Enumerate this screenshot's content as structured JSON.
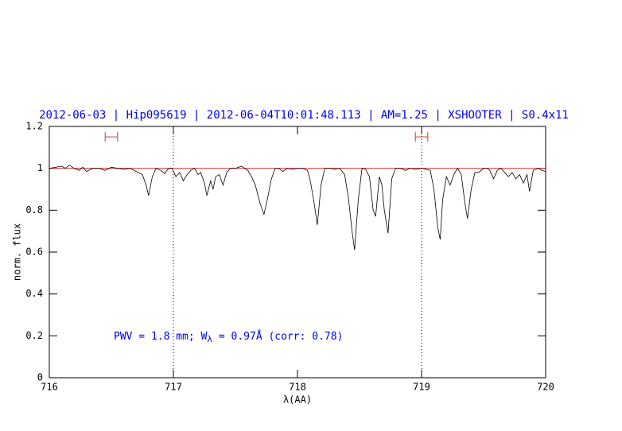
{
  "chart_data": {
    "type": "line",
    "title": "2012-06-03 | Hip095619 | 2012-06-04T10:01:48.113 | AM=1.25 | XSHOOTER | S0.4x11",
    "xlabel": "λ(AA)",
    "ylabel": "norm. flux",
    "annotation": [
      "PWV = 1.8 mm; W",
      "λ",
      " = 0.97Å (corr: 0.78)"
    ],
    "xlim": [
      716,
      720
    ],
    "xticks": [
      716,
      717,
      718,
      719,
      720
    ],
    "ylim": [
      0,
      1.2
    ],
    "yticks": [
      0,
      0.2,
      0.4,
      0.6,
      0.8,
      1,
      1.2
    ],
    "color": "#000000",
    "reference_line": {
      "y": 1,
      "color": "#e03030"
    },
    "vlines": [
      717,
      719
    ],
    "intervals": [
      {
        "x": [
          716.45,
          716.55
        ],
        "y": 1.15
      },
      {
        "x": [
          718.95,
          719.05
        ],
        "y": 1.15
      }
    ],
    "interval_color": "#e03030",
    "title_color": "#0000ee",
    "x": [
      716.0,
      716.05,
      716.1,
      716.13,
      716.16,
      716.2,
      716.24,
      716.27,
      716.3,
      716.35,
      716.4,
      716.45,
      716.5,
      716.55,
      716.6,
      716.65,
      716.7,
      716.75,
      716.78,
      716.8,
      716.83,
      716.86,
      716.9,
      716.93,
      716.96,
      716.99,
      717.02,
      717.05,
      717.08,
      717.11,
      717.14,
      717.17,
      717.2,
      717.22,
      717.25,
      717.27,
      717.3,
      717.32,
      717.34,
      717.37,
      717.4,
      717.43,
      717.46,
      717.5,
      717.55,
      717.6,
      717.63,
      717.66,
      717.7,
      717.73,
      717.76,
      717.79,
      717.82,
      717.85,
      717.88,
      717.92,
      717.96,
      718.0,
      718.04,
      718.08,
      718.1,
      718.13,
      718.16,
      718.19,
      718.22,
      718.26,
      718.3,
      718.34,
      718.38,
      718.41,
      718.44,
      718.46,
      718.49,
      718.52,
      718.55,
      718.58,
      718.61,
      718.63,
      718.66,
      718.68,
      718.7,
      718.73,
      718.76,
      718.79,
      718.83,
      718.87,
      718.91,
      718.95,
      719.0,
      719.04,
      719.07,
      719.1,
      719.13,
      719.15,
      719.17,
      719.2,
      719.23,
      719.26,
      719.29,
      719.32,
      719.35,
      719.37,
      719.4,
      719.43,
      719.46,
      719.5,
      719.53,
      719.55,
      719.58,
      719.61,
      719.64,
      719.67,
      719.7,
      719.73,
      719.76,
      719.79,
      719.82,
      719.85,
      719.87,
      719.9,
      719.94,
      719.97,
      720.0
    ],
    "values": [
      1.0,
      1.005,
      1.01,
      1.0,
      1.015,
      1.0,
      0.99,
      1.005,
      0.985,
      1.0,
      1.0,
      0.99,
      1.005,
      1.0,
      0.995,
      1.0,
      0.985,
      0.97,
      0.92,
      0.87,
      0.96,
      1.0,
      0.99,
      0.975,
      1.0,
      1.0,
      0.96,
      0.98,
      0.94,
      0.97,
      0.99,
      1.0,
      0.97,
      0.98,
      0.93,
      0.87,
      0.94,
      0.9,
      0.96,
      0.97,
      0.92,
      0.98,
      1.0,
      1.0,
      1.01,
      0.99,
      0.96,
      0.92,
      0.83,
      0.78,
      0.86,
      0.95,
      1.0,
      1.0,
      0.985,
      1.0,
      0.995,
      1.0,
      1.0,
      0.99,
      0.95,
      0.85,
      0.73,
      0.92,
      1.0,
      1.0,
      0.995,
      1.0,
      0.97,
      0.86,
      0.7,
      0.61,
      0.85,
      1.0,
      0.995,
      0.96,
      0.8,
      0.77,
      0.96,
      0.92,
      0.8,
      0.69,
      0.95,
      1.0,
      1.0,
      0.99,
      1.0,
      0.995,
      1.0,
      0.995,
      0.99,
      0.9,
      0.72,
      0.66,
      0.85,
      0.96,
      0.92,
      0.97,
      1.0,
      0.97,
      0.83,
      0.76,
      0.9,
      0.98,
      0.98,
      1.0,
      1.0,
      0.99,
      0.95,
      0.99,
      1.0,
      0.98,
      0.96,
      0.98,
      0.95,
      0.97,
      0.93,
      0.97,
      0.89,
      0.99,
      1.0,
      0.99,
      0.985
    ]
  }
}
